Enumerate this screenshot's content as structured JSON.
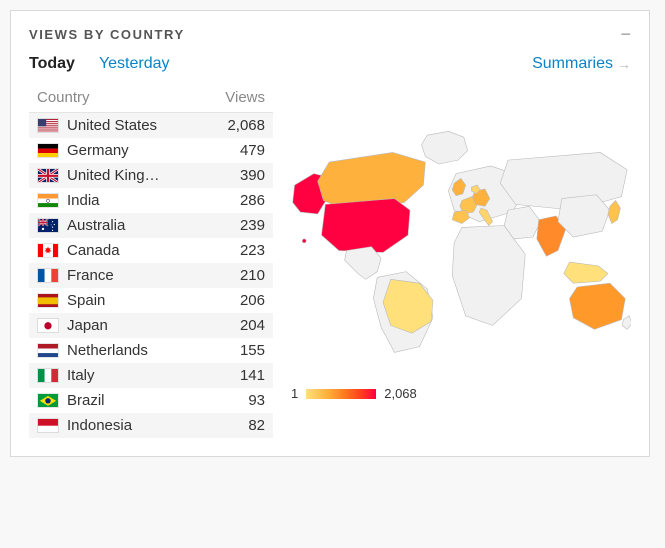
{
  "panel": {
    "title": "VIEWS BY COUNTRY",
    "collapse_glyph": "−"
  },
  "timeframe": {
    "today": "Today",
    "yesterday": "Yesterday",
    "active": "today"
  },
  "summaries_label": "Summaries",
  "table": {
    "col_country": "Country",
    "col_views": "Views",
    "rows": [
      {
        "country": "United States",
        "views": "2,068",
        "flag": "us"
      },
      {
        "country": "Germany",
        "views": "479",
        "flag": "de"
      },
      {
        "country": "United King…",
        "views": "390",
        "flag": "gb"
      },
      {
        "country": "India",
        "views": "286",
        "flag": "in"
      },
      {
        "country": "Australia",
        "views": "239",
        "flag": "au"
      },
      {
        "country": "Canada",
        "views": "223",
        "flag": "ca"
      },
      {
        "country": "France",
        "views": "210",
        "flag": "fr"
      },
      {
        "country": "Spain",
        "views": "206",
        "flag": "es"
      },
      {
        "country": "Japan",
        "views": "204",
        "flag": "jp"
      },
      {
        "country": "Netherlands",
        "views": "155",
        "flag": "nl"
      },
      {
        "country": "Italy",
        "views": "141",
        "flag": "it"
      },
      {
        "country": "Brazil",
        "views": "93",
        "flag": "br"
      },
      {
        "country": "Indonesia",
        "views": "82",
        "flag": "id"
      }
    ]
  },
  "map": {
    "legend_min": "1",
    "legend_max": "2,068",
    "gradient": [
      "#ffe07a",
      "#ffb13d",
      "#ff7a1f",
      "#ff3a1f",
      "#ff0040"
    ],
    "base_fill": "#f1f1f1",
    "stroke": "#b8b8b8",
    "highlights": {
      "us": "#ff0040",
      "de": "#ffb13d",
      "gb": "#ffb13d",
      "in": "#ff8a2a",
      "au": "#ff9a2a",
      "ca": "#ffb13d",
      "fr": "#ffc24d",
      "es": "#ffc24d",
      "jp": "#ffc24d",
      "nl": "#ffd46a",
      "it": "#ffd46a",
      "br": "#ffe07a",
      "id": "#ffe07a"
    }
  },
  "colors": {
    "link": "#0a84c6",
    "text": "#333333",
    "muted": "#888888",
    "panel_border": "#d9d9d9"
  }
}
